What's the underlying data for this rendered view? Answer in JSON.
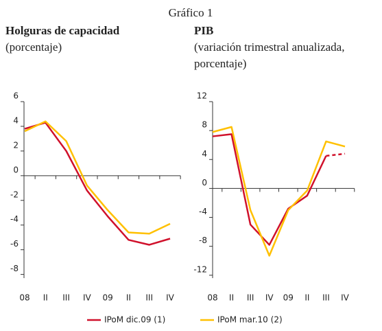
{
  "title": "Gráfico 1",
  "chart_data": [
    {
      "type": "line",
      "title": "Holguras de capacidad",
      "subtitle": [
        "(porcentaje)"
      ],
      "categories": [
        "08",
        "II",
        "III",
        "IV",
        "09",
        "II",
        "III",
        "IV"
      ],
      "ylim": [
        -8.3,
        6
      ],
      "yticks": [
        6,
        4,
        2,
        0,
        -2,
        -4,
        -6,
        -8
      ],
      "series": [
        {
          "name": "IPoM dic.09 (1)",
          "color": "#d0112b",
          "values": [
            3.8,
            4.3,
            2,
            -1.2,
            -3.3,
            -5.2,
            -5.6,
            -5.1
          ]
        },
        {
          "name": "IPoM mar.10 (2)",
          "color": "#ffc000",
          "values": [
            3.6,
            4.4,
            2.8,
            -0.8,
            -2.8,
            -4.6,
            -4.7,
            -3.9
          ]
        }
      ]
    },
    {
      "type": "line",
      "title": "PIB",
      "subtitle": [
        "(variación trimestral anualizada,",
        "porcentaje)"
      ],
      "categories": [
        "08",
        "II",
        "III",
        "IV",
        "09",
        "II",
        "III",
        "IV"
      ],
      "ylim": [
        -12.4,
        12
      ],
      "yticks": [
        12,
        8,
        4,
        0,
        -4,
        -8,
        -12
      ],
      "series": [
        {
          "color": "#d0112b",
          "values": [
            7.2,
            7.5,
            -5,
            -7.8,
            -2.8,
            -1,
            4.5,
            4.8
          ],
          "dash_from_index": 6
        },
        {
          "color": "#ffc000",
          "values": [
            7.8,
            8.5,
            -3,
            -9.3,
            -3,
            -0.3,
            6.5,
            5.8
          ]
        }
      ]
    }
  ]
}
